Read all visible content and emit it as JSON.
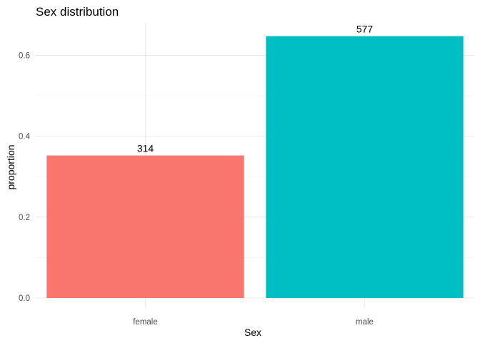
{
  "chart_data": {
    "type": "bar",
    "title": "Sex distribution",
    "xlabel": "Sex",
    "ylabel": "proportion",
    "categories": [
      "female",
      "male"
    ],
    "values": [
      0.3524,
      0.6476
    ],
    "labels": [
      "314",
      "577"
    ],
    "colors": [
      "#F8766D",
      "#00BFC4"
    ],
    "ylim": [
      0,
      0.68
    ],
    "yticks": [
      0.0,
      0.2,
      0.4,
      0.6
    ],
    "ytick_labels": [
      "0.0",
      "0.2",
      "0.4",
      "0.6"
    ],
    "grid": true,
    "legend": "none"
  }
}
